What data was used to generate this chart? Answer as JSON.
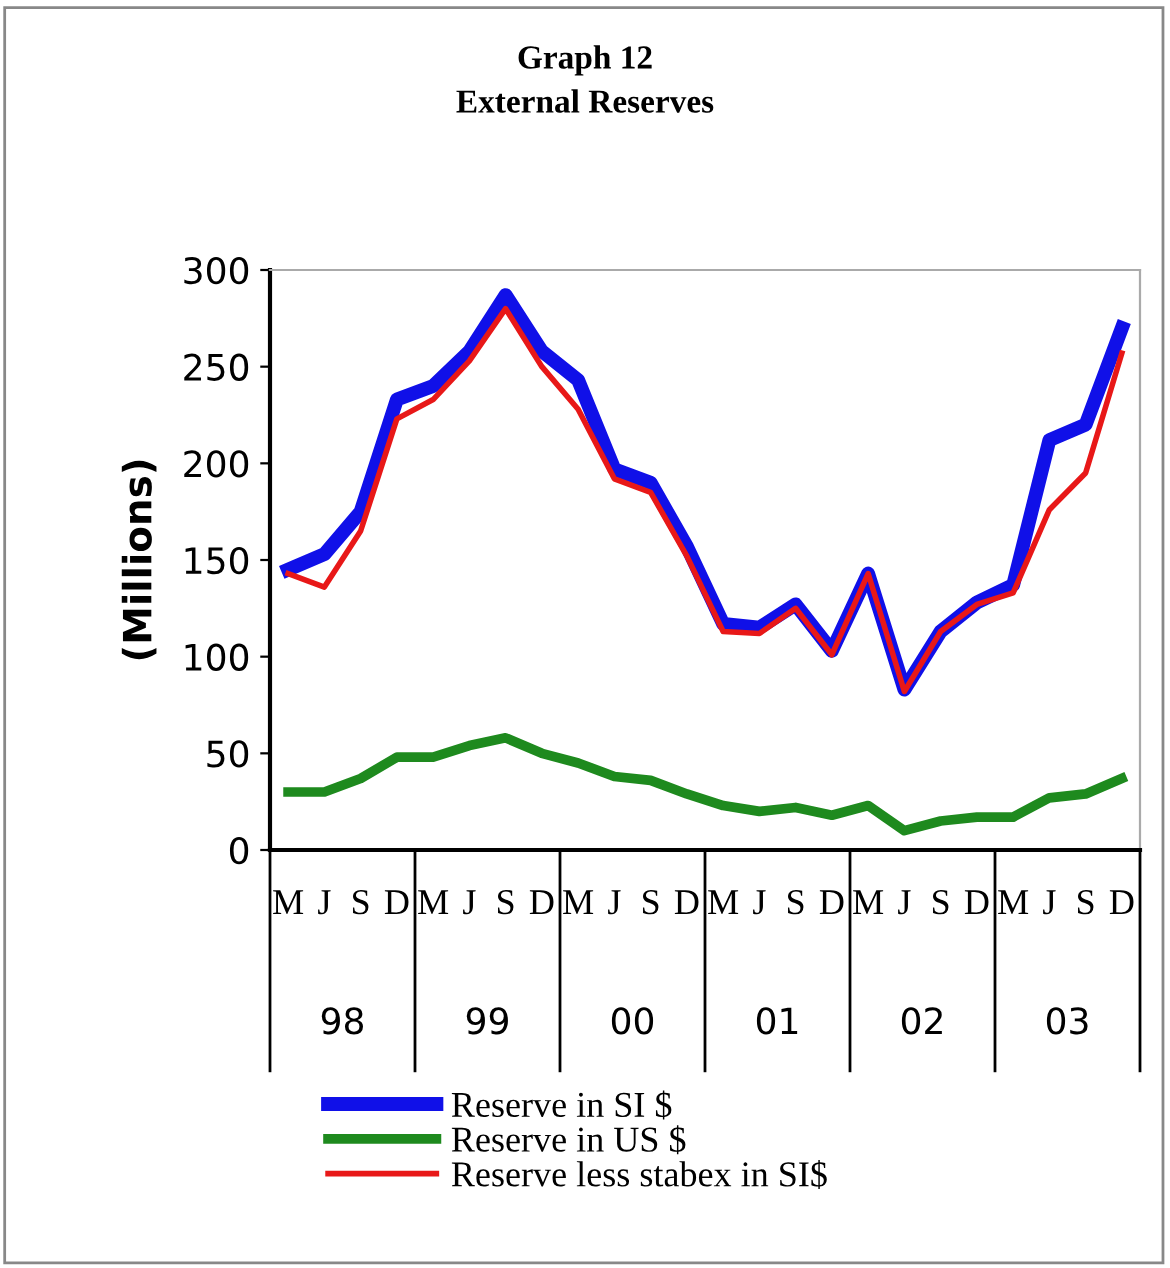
{
  "chart_data": {
    "type": "line",
    "title": "Graph 12\nExternal Reserves",
    "ylabel": "(Millions)",
    "categories": [
      "M",
      "J",
      "S",
      "D",
      "M",
      "J",
      "S",
      "D",
      "M",
      "J",
      "S",
      "D",
      "M",
      "J",
      "S",
      "D",
      "M",
      "J",
      "S",
      "D",
      "M",
      "J",
      "S",
      "D"
    ],
    "annotations": [
      "98",
      "99",
      "00",
      "01",
      "02",
      "03"
    ],
    "series": [
      {
        "name": "Reserve in SI $",
        "color": "#1010e8",
        "values": [
          145,
          153,
          175,
          233,
          240,
          258,
          287,
          258,
          243,
          197,
          190,
          157,
          117,
          115,
          127,
          103,
          143,
          83,
          113,
          128,
          137,
          212,
          220,
          270
        ]
      },
      {
        "name": "Reserve in US $",
        "color": "#1e8a1e",
        "values": [
          30,
          30,
          37,
          48,
          48,
          54,
          58,
          50,
          45,
          38,
          36,
          29,
          23,
          20,
          22,
          18,
          23,
          10,
          15,
          17,
          17,
          27,
          29,
          37
        ]
      },
      {
        "name": "Reserve less stabex in SI$",
        "color": "#e81818",
        "values": [
          143,
          136,
          165,
          223,
          233,
          253,
          280,
          250,
          228,
          192,
          185,
          152,
          113,
          112,
          125,
          101,
          143,
          82,
          113,
          127,
          133,
          176,
          195,
          257
        ]
      }
    ],
    "ylim": [
      0,
      300
    ],
    "yticks": [
      0,
      50,
      100,
      150,
      200,
      250,
      300
    ],
    "grid": false,
    "legend": "bottom",
    "marker": "none",
    "line_style": "solid"
  }
}
